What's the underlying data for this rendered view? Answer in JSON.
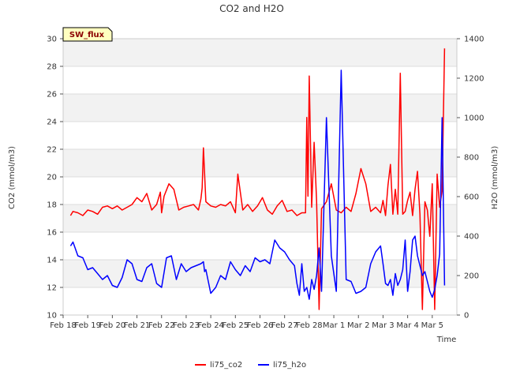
{
  "chart_data": {
    "type": "line",
    "title": "CO2 and H2O",
    "xlabel": "Time",
    "ylabel_left": "CO2 (mmol/m3)",
    "ylabel_right": "H2O (mmol/m3)",
    "badge": "SW_flux",
    "xlim": [
      0,
      16
    ],
    "ylim_left": [
      10,
      30
    ],
    "ylim_right": [
      0,
      1400
    ],
    "x_tick_labels": [
      "Feb 18",
      "Feb 19",
      "Feb 20",
      "Feb 21",
      "Feb 22",
      "Feb 23",
      "Feb 24",
      "Feb 25",
      "Feb 26",
      "Feb 27",
      "Feb 28",
      "Mar 1",
      "Mar 2",
      "Mar 3",
      "Mar 4",
      "Mar 5"
    ],
    "x_tick_values": [
      0,
      1,
      2,
      3,
      4,
      5,
      6,
      7,
      8,
      9,
      10,
      11,
      12,
      13,
      14,
      15,
      16
    ],
    "y_left_ticks": [
      10,
      12,
      14,
      16,
      18,
      20,
      22,
      24,
      26,
      28,
      30
    ],
    "y_right_ticks": [
      0,
      200,
      400,
      600,
      800,
      1000,
      1200,
      1400
    ],
    "grid": true,
    "legend_position": "bottom-center",
    "series": [
      {
        "name": "li75_co2",
        "axis": "left",
        "color": "#ff0000",
        "x": [
          0.3,
          0.4,
          0.6,
          0.8,
          1.0,
          1.2,
          1.4,
          1.6,
          1.8,
          2.0,
          2.2,
          2.4,
          2.6,
          2.8,
          3.0,
          3.2,
          3.4,
          3.6,
          3.8,
          3.95,
          4.0,
          4.1,
          4.3,
          4.5,
          4.7,
          4.9,
          5.1,
          5.3,
          5.5,
          5.6,
          5.65,
          5.7,
          5.8,
          6.0,
          6.2,
          6.4,
          6.6,
          6.8,
          7.0,
          7.1,
          7.3,
          7.5,
          7.7,
          7.9,
          8.1,
          8.3,
          8.5,
          8.7,
          8.9,
          9.1,
          9.3,
          9.5,
          9.7,
          9.85,
          9.9,
          9.95,
          10.0,
          10.1,
          10.2,
          10.3,
          10.4,
          10.5,
          10.7,
          10.9,
          11.1,
          11.3,
          11.5,
          11.7,
          11.9,
          12.1,
          12.3,
          12.5,
          12.7,
          12.9,
          13.0,
          13.1,
          13.2,
          13.3,
          13.4,
          13.5,
          13.6,
          13.7,
          13.8,
          13.9,
          14.0,
          14.1,
          14.2,
          14.3,
          14.4,
          14.5,
          14.6,
          14.7,
          14.8,
          14.9,
          15.0,
          15.1,
          15.2,
          15.3,
          15.4,
          15.5
        ],
        "values": [
          17.2,
          17.5,
          17.4,
          17.2,
          17.6,
          17.5,
          17.3,
          17.8,
          17.9,
          17.7,
          17.9,
          17.6,
          17.8,
          18.0,
          18.5,
          18.2,
          18.8,
          17.6,
          18.0,
          18.9,
          17.4,
          18.6,
          19.5,
          19.1,
          17.6,
          17.8,
          17.9,
          18.0,
          17.6,
          18.4,
          19.2,
          22.1,
          18.2,
          17.9,
          17.8,
          18.0,
          17.9,
          18.2,
          17.4,
          20.2,
          17.6,
          18.0,
          17.5,
          17.9,
          18.5,
          17.6,
          17.3,
          17.9,
          18.3,
          17.5,
          17.6,
          17.2,
          17.4,
          17.4,
          24.3,
          18.6,
          27.3,
          17.8,
          22.5,
          18.3,
          10.4,
          17.7,
          18.2,
          19.5,
          17.6,
          17.4,
          17.8,
          17.5,
          18.8,
          20.6,
          19.5,
          17.5,
          17.8,
          17.4,
          18.3,
          17.2,
          19.4,
          20.9,
          17.3,
          19.1,
          17.3,
          27.5,
          17.3,
          17.5,
          18.3,
          18.9,
          17.2,
          19.1,
          20.4,
          17.3,
          10.4,
          18.2,
          17.6,
          15.7,
          19.5,
          10.4,
          20.2,
          17.8,
          19.0,
          29.3
        ],
        "note": "values are visual estimates"
      },
      {
        "name": "li75_h2o",
        "axis": "right",
        "color": "#0000ff",
        "x": [
          0.3,
          0.4,
          0.6,
          0.8,
          1.0,
          1.2,
          1.4,
          1.6,
          1.8,
          2.0,
          2.2,
          2.4,
          2.6,
          2.8,
          3.0,
          3.2,
          3.4,
          3.6,
          3.8,
          4.0,
          4.2,
          4.4,
          4.6,
          4.8,
          5.0,
          5.2,
          5.4,
          5.6,
          5.7,
          5.75,
          5.8,
          6.0,
          6.2,
          6.4,
          6.6,
          6.8,
          7.0,
          7.2,
          7.4,
          7.6,
          7.8,
          8.0,
          8.2,
          8.4,
          8.6,
          8.8,
          9.0,
          9.2,
          9.4,
          9.5,
          9.6,
          9.7,
          9.8,
          9.9,
          10.0,
          10.1,
          10.2,
          10.3,
          10.4,
          10.5,
          10.7,
          10.9,
          11.1,
          11.3,
          11.5,
          11.7,
          11.9,
          12.1,
          12.3,
          12.5,
          12.7,
          12.9,
          13.0,
          13.1,
          13.2,
          13.3,
          13.4,
          13.5,
          13.6,
          13.7,
          13.8,
          13.9,
          14.0,
          14.1,
          14.2,
          14.3,
          14.4,
          14.5,
          14.6,
          14.7,
          14.8,
          14.9,
          15.0,
          15.1,
          15.2,
          15.3,
          15.4,
          15.5
        ],
        "values": [
          350,
          370,
          300,
          290,
          230,
          240,
          210,
          180,
          200,
          150,
          140,
          190,
          280,
          260,
          180,
          170,
          240,
          260,
          160,
          140,
          290,
          300,
          180,
          260,
          220,
          240,
          250,
          260,
          270,
          220,
          230,
          110,
          140,
          200,
          180,
          270,
          230,
          200,
          250,
          220,
          290,
          270,
          280,
          260,
          380,
          340,
          320,
          280,
          250,
          160,
          100,
          260,
          120,
          140,
          80,
          180,
          130,
          200,
          340,
          120,
          1000,
          300,
          120,
          1240,
          180,
          170,
          110,
          120,
          140,
          260,
          320,
          350,
          260,
          160,
          150,
          180,
          100,
          210,
          150,
          180,
          230,
          380,
          120,
          220,
          380,
          400,
          300,
          250,
          200,
          220,
          170,
          120,
          90,
          130,
          200,
          310,
          1000,
          150
        ],
        "note": "values are visual estimates"
      }
    ]
  }
}
